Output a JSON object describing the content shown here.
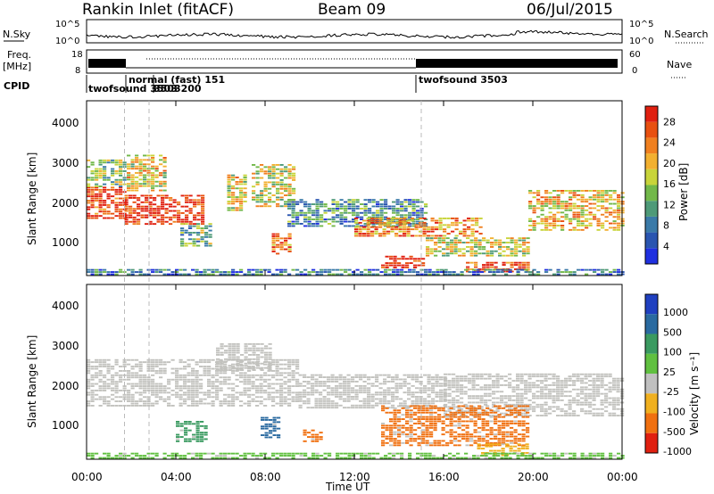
{
  "header": {
    "station": "Rankin Inlet (fitACF)",
    "beam": "Beam 09",
    "date": "06/Jul/2015"
  },
  "noise": {
    "left_label": "N.Sky",
    "right_label": "N.Search",
    "ticks_left": [
      "10^5",
      "10^0"
    ],
    "ticks_right": [
      "10^5",
      "10^0"
    ]
  },
  "freq": {
    "label_top": "Freq.",
    "label_bottom": "[MHz]",
    "ticks_left": [
      "18",
      "8"
    ],
    "ticks_right": [
      "60",
      "0"
    ],
    "right_label": "Nave"
  },
  "cpid": {
    "label": "CPID",
    "segments": [
      {
        "text": "twofsound 3503",
        "t": 0.2
      },
      {
        "text": "normal (fast) 151",
        "t": 2.2
      },
      {
        "text": "3503200",
        "t": 3.1
      },
      {
        "text": "twofsound 3503",
        "t": 15.0
      }
    ]
  },
  "chart_data": [
    {
      "type": "heatmap",
      "name": "power",
      "xlabel": "",
      "ylabel": "Slant Range [km]",
      "xlim": [
        0,
        24
      ],
      "ylim": [
        180,
        4600
      ],
      "yticks": [
        "1000",
        "2000",
        "3000",
        "4000"
      ],
      "colorbar": {
        "label": "Power [dB]",
        "ticks": [
          "4",
          "8",
          "12",
          "16",
          "20",
          "24",
          "28"
        ],
        "colors": [
          "#2030e0",
          "#2a55b0",
          "#3a7aa8",
          "#4e9a78",
          "#72b84a",
          "#c8d43a",
          "#f2b030",
          "#f08020",
          "#e85010",
          "#e02010"
        ]
      },
      "regions": [
        {
          "t0": 0.0,
          "t1": 1.7,
          "r0": 1600,
          "r1": 2400,
          "level": 0.9
        },
        {
          "t0": 0.0,
          "t1": 1.7,
          "r0": 2400,
          "r1": 3100,
          "level": 0.45
        },
        {
          "t0": 1.7,
          "t1": 5.2,
          "r0": 1450,
          "r1": 2200,
          "level": 0.95
        },
        {
          "t0": 1.8,
          "t1": 3.5,
          "r0": 2300,
          "r1": 3200,
          "level": 0.6
        },
        {
          "t0": 4.2,
          "t1": 5.5,
          "r0": 900,
          "r1": 1500,
          "level": 0.4
        },
        {
          "t0": 6.3,
          "t1": 7.1,
          "r0": 1800,
          "r1": 2700,
          "level": 0.6
        },
        {
          "t0": 7.4,
          "t1": 9.2,
          "r0": 1900,
          "r1": 3000,
          "level": 0.55
        },
        {
          "t0": 8.3,
          "t1": 9.2,
          "r0": 700,
          "r1": 1200,
          "level": 0.8
        },
        {
          "t0": 9.0,
          "t1": 15.2,
          "r0": 1400,
          "r1": 2100,
          "level": 0.3
        },
        {
          "t0": 12.0,
          "t1": 17.6,
          "r0": 1150,
          "r1": 1600,
          "level": 0.75
        },
        {
          "t0": 13.2,
          "t1": 15.0,
          "r0": 350,
          "r1": 650,
          "level": 0.95
        },
        {
          "t0": 15.2,
          "t1": 19.8,
          "r0": 650,
          "r1": 1100,
          "level": 0.55
        },
        {
          "t0": 17.0,
          "t1": 19.8,
          "r0": 250,
          "r1": 500,
          "level": 0.9
        },
        {
          "t0": 19.8,
          "t1": 24.0,
          "r0": 1300,
          "r1": 2300,
          "level": 0.65
        },
        {
          "t0": 0.0,
          "t1": 24.0,
          "r0": 180,
          "r1": 330,
          "level": 0.25
        }
      ]
    },
    {
      "type": "heatmap",
      "name": "velocity",
      "xlabel": "Time UT",
      "ylabel": "Slant Range [km]",
      "xlim": [
        0,
        24
      ],
      "ylim": [
        180,
        4600
      ],
      "yticks": [
        "1000",
        "2000",
        "3000",
        "4000"
      ],
      "xticks": [
        "00:00",
        "04:00",
        "08:00",
        "12:00",
        "16:00",
        "20:00",
        "00:00"
      ],
      "colorbar": {
        "label": "Velocity [m s⁻¹]",
        "ticks": [
          "1000",
          "500",
          "100",
          "25",
          "-25",
          "-100",
          "-500",
          "-1000"
        ],
        "colors": [
          "#2040c0",
          "#2a6aa0",
          "#3a9a60",
          "#60c040",
          "#c0c0c0",
          "#f0b020",
          "#f07010",
          "#e02010"
        ]
      },
      "regions": [
        {
          "t0": 0.0,
          "t1": 9.5,
          "r0": 1500,
          "r1": 2700,
          "color": "#c2c2be"
        },
        {
          "t0": 9.5,
          "t1": 16.0,
          "r0": 1450,
          "r1": 2300,
          "color": "#c2c2be"
        },
        {
          "t0": 16.0,
          "t1": 24.0,
          "r0": 1250,
          "r1": 2300,
          "color": "#c2c2be"
        },
        {
          "t0": 5.8,
          "t1": 8.2,
          "r0": 2400,
          "r1": 3100,
          "color": "#c2c2be"
        },
        {
          "t0": 7.8,
          "t1": 8.6,
          "r0": 700,
          "r1": 1200,
          "color": "#2a6aa0"
        },
        {
          "t0": 4.0,
          "t1": 5.4,
          "r0": 600,
          "r1": 1100,
          "color": "#3a9a60"
        },
        {
          "t0": 9.7,
          "t1": 10.5,
          "r0": 600,
          "r1": 900,
          "color": "#f07010"
        },
        {
          "t0": 13.2,
          "t1": 19.8,
          "r0": 500,
          "r1": 1500,
          "color": "#f07010"
        },
        {
          "t0": 17.5,
          "t1": 19.8,
          "r0": 250,
          "r1": 550,
          "color": "#f0b020"
        },
        {
          "t0": 0.0,
          "t1": 24.0,
          "r0": 180,
          "r1": 330,
          "color": "#60c040"
        }
      ]
    }
  ]
}
